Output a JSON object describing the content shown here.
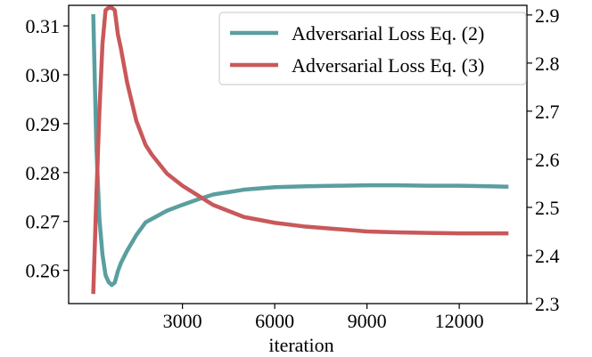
{
  "chart_data": {
    "type": "line",
    "title": "",
    "xlabel": "iteration",
    "ylabel_left": "",
    "ylabel_right": "",
    "xlim": [
      -700,
      14200
    ],
    "xticks": [
      3000,
      6000,
      9000,
      12000
    ],
    "ylim_left": [
      0.2532,
      0.3142
    ],
    "yticks_left": [
      0.26,
      0.27,
      0.28,
      0.29,
      0.3,
      0.31
    ],
    "ylim_right": [
      2.3,
      2.92
    ],
    "yticks_right": [
      2.3,
      2.4,
      2.5,
      2.6,
      2.7,
      2.8,
      2.9
    ],
    "legend_position": "top-right",
    "grid": false,
    "series": [
      {
        "name": "Adversarial Loss Eq. (2)",
        "axis": "left",
        "color": "#5a9ea0",
        "x": [
          100,
          200,
          300,
          400,
          500,
          600,
          700,
          800,
          900,
          1000,
          1200,
          1500,
          1800,
          2000,
          2500,
          3000,
          3500,
          4000,
          5000,
          6000,
          7000,
          8000,
          9000,
          10000,
          11000,
          12000,
          13000,
          13600
        ],
        "y": [
          0.3124,
          0.2855,
          0.2705,
          0.2632,
          0.259,
          0.2576,
          0.257,
          0.2575,
          0.2598,
          0.2615,
          0.264,
          0.2672,
          0.2698,
          0.2705,
          0.2722,
          0.2734,
          0.2745,
          0.2755,
          0.2765,
          0.277,
          0.2772,
          0.2773,
          0.2774,
          0.2774,
          0.2773,
          0.2773,
          0.2772,
          0.2771
        ]
      },
      {
        "name": "Adversarial Loss Eq. (3)",
        "axis": "right",
        "color": "#c9585a",
        "x": [
          100,
          200,
          300,
          400,
          500,
          600,
          700,
          800,
          900,
          1000,
          1200,
          1500,
          1800,
          2000,
          2500,
          3000,
          3500,
          4000,
          5000,
          6000,
          7000,
          8000,
          9000,
          10000,
          11000,
          12000,
          13000,
          13600
        ],
        "y": [
          2.32,
          2.52,
          2.7,
          2.84,
          2.91,
          2.915,
          2.915,
          2.91,
          2.86,
          2.83,
          2.76,
          2.68,
          2.63,
          2.61,
          2.57,
          2.545,
          2.525,
          2.505,
          2.48,
          2.468,
          2.46,
          2.455,
          2.45,
          2.448,
          2.447,
          2.446,
          2.446,
          2.446
        ]
      }
    ]
  }
}
